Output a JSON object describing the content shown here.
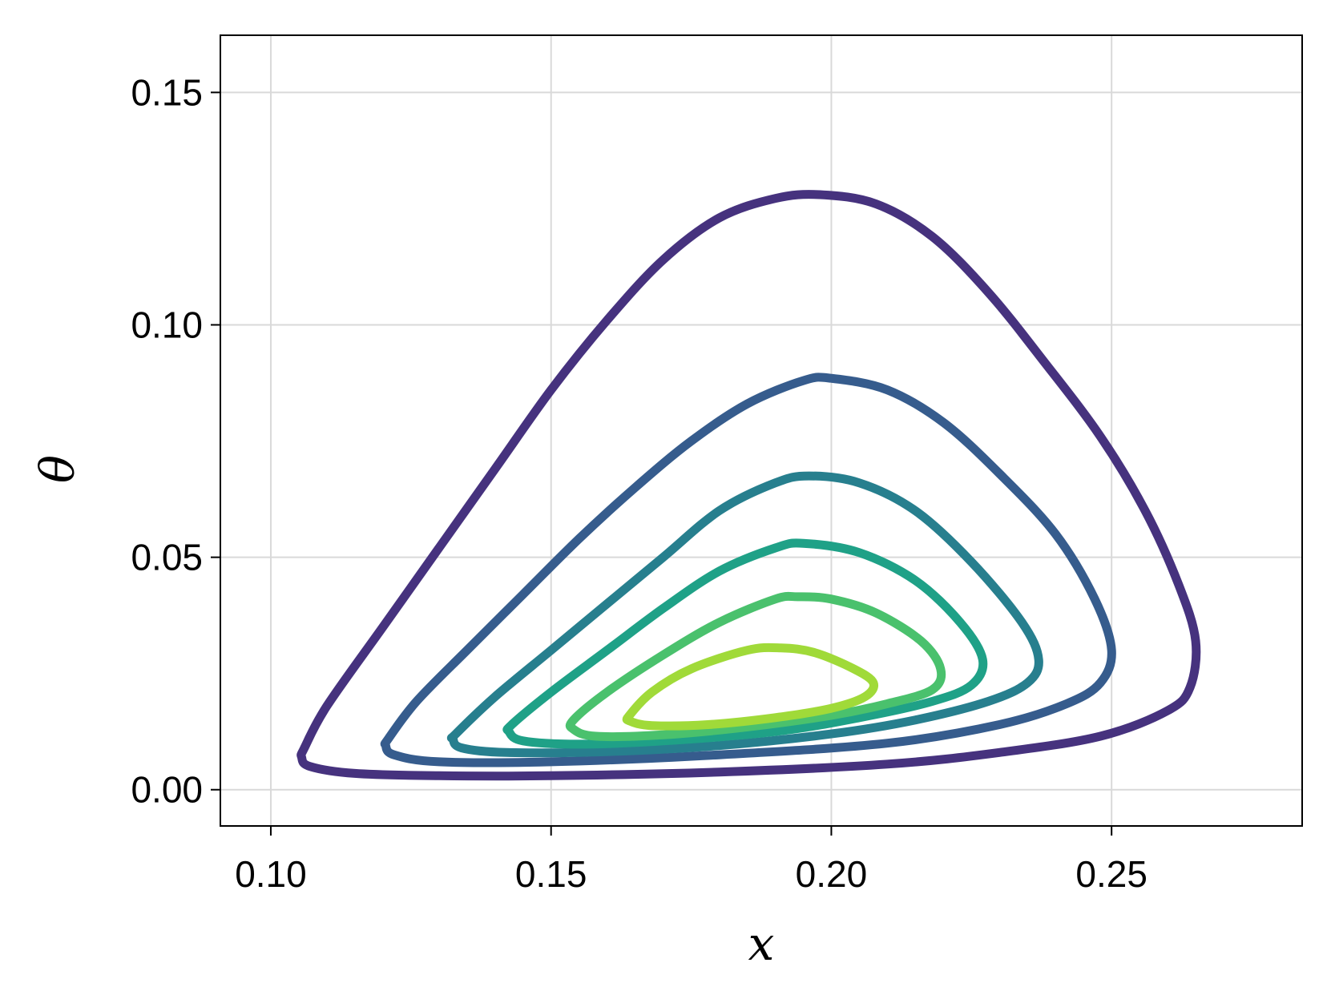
{
  "chart_data": {
    "type": "line",
    "title": "",
    "xlabel": "x",
    "ylabel": "θ",
    "xlim": [
      0.091,
      0.284
    ],
    "ylim": [
      -0.0078,
      0.1623
    ],
    "x_ticks": [
      "0.10",
      "0.15",
      "0.20",
      "0.25"
    ],
    "y_ticks": [
      "0.00",
      "0.05",
      "0.10",
      "0.15"
    ],
    "grid": true,
    "legend": "none",
    "series": [
      {
        "color": "#46327e",
        "closed": true,
        "points": [
          [
            0.106,
            0.009
          ],
          [
            0.11,
            0.018
          ],
          [
            0.12,
            0.035
          ],
          [
            0.13,
            0.052
          ],
          [
            0.14,
            0.069
          ],
          [
            0.15,
            0.086
          ],
          [
            0.16,
            0.101
          ],
          [
            0.17,
            0.114
          ],
          [
            0.18,
            0.123
          ],
          [
            0.19,
            0.1272
          ],
          [
            0.198,
            0.128
          ],
          [
            0.208,
            0.126
          ],
          [
            0.218,
            0.119
          ],
          [
            0.228,
            0.107
          ],
          [
            0.238,
            0.092
          ],
          [
            0.248,
            0.076
          ],
          [
            0.256,
            0.06
          ],
          [
            0.262,
            0.044
          ],
          [
            0.265,
            0.032
          ],
          [
            0.264,
            0.022
          ],
          [
            0.26,
            0.017
          ],
          [
            0.248,
            0.0115
          ],
          [
            0.23,
            0.008
          ],
          [
            0.21,
            0.0055
          ],
          [
            0.18,
            0.0038
          ],
          [
            0.15,
            0.003
          ],
          [
            0.13,
            0.003
          ],
          [
            0.115,
            0.0035
          ],
          [
            0.107,
            0.005
          ],
          [
            0.1055,
            0.007
          ]
        ]
      },
      {
        "color": "#365c8d",
        "closed": true,
        "points": [
          [
            0.121,
            0.011
          ],
          [
            0.126,
            0.019
          ],
          [
            0.135,
            0.03
          ],
          [
            0.145,
            0.042
          ],
          [
            0.155,
            0.054
          ],
          [
            0.165,
            0.065
          ],
          [
            0.175,
            0.075
          ],
          [
            0.185,
            0.083
          ],
          [
            0.195,
            0.088
          ],
          [
            0.2,
            0.0885
          ],
          [
            0.21,
            0.086
          ],
          [
            0.22,
            0.079
          ],
          [
            0.23,
            0.068
          ],
          [
            0.24,
            0.055
          ],
          [
            0.247,
            0.041
          ],
          [
            0.25,
            0.03
          ],
          [
            0.248,
            0.023
          ],
          [
            0.242,
            0.0185
          ],
          [
            0.23,
            0.014
          ],
          [
            0.21,
            0.01
          ],
          [
            0.18,
            0.0075
          ],
          [
            0.15,
            0.006
          ],
          [
            0.13,
            0.006
          ],
          [
            0.122,
            0.0075
          ],
          [
            0.1205,
            0.0095
          ]
        ]
      },
      {
        "color": "#277f8e",
        "closed": true,
        "points": [
          [
            0.133,
            0.012
          ],
          [
            0.14,
            0.02
          ],
          [
            0.15,
            0.03
          ],
          [
            0.16,
            0.04
          ],
          [
            0.17,
            0.05
          ],
          [
            0.18,
            0.06
          ],
          [
            0.19,
            0.066
          ],
          [
            0.196,
            0.0675
          ],
          [
            0.205,
            0.066
          ],
          [
            0.215,
            0.06
          ],
          [
            0.225,
            0.049
          ],
          [
            0.234,
            0.036
          ],
          [
            0.237,
            0.028
          ],
          [
            0.235,
            0.023
          ],
          [
            0.228,
            0.019
          ],
          [
            0.215,
            0.015
          ],
          [
            0.2,
            0.012
          ],
          [
            0.18,
            0.0095
          ],
          [
            0.16,
            0.0082
          ],
          [
            0.142,
            0.008
          ],
          [
            0.134,
            0.009
          ],
          [
            0.1325,
            0.011
          ]
        ]
      },
      {
        "color": "#1fa187",
        "closed": true,
        "points": [
          [
            0.143,
            0.014
          ],
          [
            0.15,
            0.021
          ],
          [
            0.16,
            0.03
          ],
          [
            0.17,
            0.039
          ],
          [
            0.18,
            0.047
          ],
          [
            0.19,
            0.052
          ],
          [
            0.195,
            0.053
          ],
          [
            0.205,
            0.051
          ],
          [
            0.215,
            0.045
          ],
          [
            0.223,
            0.036
          ],
          [
            0.227,
            0.028
          ],
          [
            0.225,
            0.0225
          ],
          [
            0.218,
            0.019
          ],
          [
            0.205,
            0.0155
          ],
          [
            0.19,
            0.0125
          ],
          [
            0.17,
            0.0105
          ],
          [
            0.155,
            0.0098
          ],
          [
            0.145,
            0.0105
          ],
          [
            0.1425,
            0.0125
          ]
        ]
      },
      {
        "color": "#4ac16d",
        "closed": true,
        "points": [
          [
            0.154,
            0.015
          ],
          [
            0.16,
            0.021
          ],
          [
            0.17,
            0.029
          ],
          [
            0.18,
            0.036
          ],
          [
            0.19,
            0.041
          ],
          [
            0.194,
            0.0415
          ],
          [
            0.2,
            0.041
          ],
          [
            0.208,
            0.038
          ],
          [
            0.216,
            0.032
          ],
          [
            0.2195,
            0.026
          ],
          [
            0.218,
            0.0215
          ],
          [
            0.21,
            0.0185
          ],
          [
            0.2,
            0.016
          ],
          [
            0.185,
            0.0135
          ],
          [
            0.17,
            0.0118
          ],
          [
            0.158,
            0.0115
          ],
          [
            0.154,
            0.013
          ]
        ]
      },
      {
        "color": "#a0da39",
        "closed": true,
        "points": [
          [
            0.164,
            0.016
          ],
          [
            0.168,
            0.021
          ],
          [
            0.175,
            0.026
          ],
          [
            0.185,
            0.03
          ],
          [
            0.191,
            0.0305
          ],
          [
            0.197,
            0.0295
          ],
          [
            0.204,
            0.026
          ],
          [
            0.2075,
            0.023
          ],
          [
            0.206,
            0.02
          ],
          [
            0.2,
            0.0175
          ],
          [
            0.19,
            0.0155
          ],
          [
            0.178,
            0.014
          ],
          [
            0.168,
            0.0138
          ],
          [
            0.164,
            0.0148
          ]
        ]
      }
    ]
  }
}
